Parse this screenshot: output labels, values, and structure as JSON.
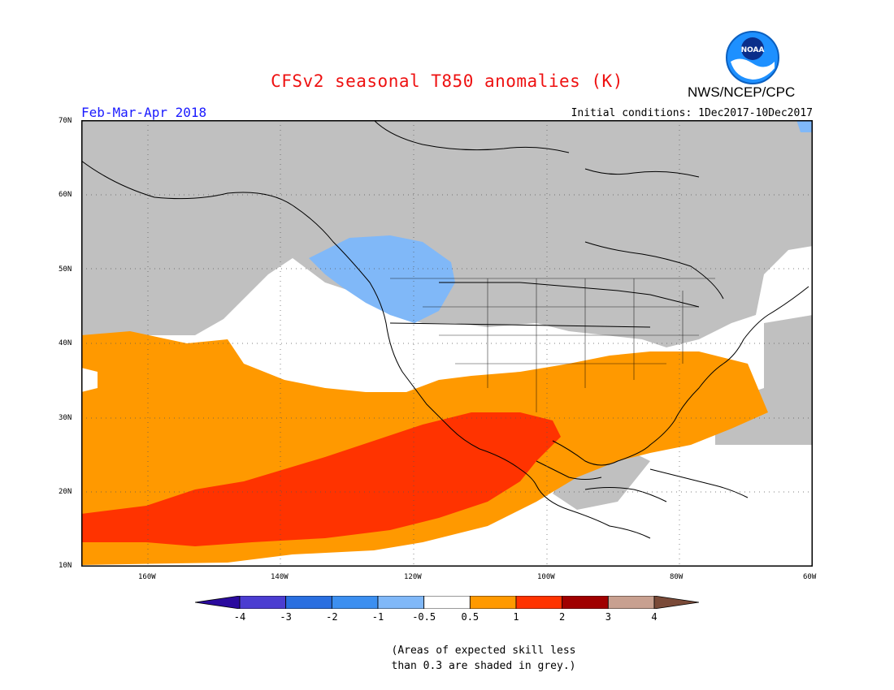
{
  "header": {
    "title": "CFSv2 seasonal T850 anomalies (K)",
    "agency": "NWS/NCEP/CPC",
    "logo_text": "NOAA",
    "period": "Feb-Mar-Apr 2018",
    "initial_conditions": "Initial conditions: 1Dec2017-10Dec2017"
  },
  "map": {
    "lat_ticks": [
      "70N",
      "60N",
      "50N",
      "40N",
      "30N",
      "20N",
      "10N"
    ],
    "lon_ticks": [
      "160W",
      "140W",
      "120W",
      "100W",
      "80W",
      "60W"
    ],
    "extent": {
      "lon_min": -170,
      "lon_max": -60,
      "lat_min": 10,
      "lat_max": 70
    },
    "grid": true
  },
  "colorbar": {
    "labels": [
      "-4",
      "-3",
      "-2",
      "-1",
      "-0.5",
      "0.5",
      "1",
      "2",
      "3",
      "4"
    ],
    "colors": [
      "#2a0a9e",
      "#4b3dd1",
      "#2a6fe0",
      "#3c8ff0",
      "#80b8f8",
      "#ffffff",
      "#ff9900",
      "#ff3300",
      "#a00000",
      "#c8a090",
      "#7a4a38"
    ]
  },
  "footnote": {
    "line1": "(Areas of expected skill less",
    "line2": "than 0.3 are shaded in grey.)"
  },
  "colors": {
    "skill_grey": "#c0c0c0",
    "title_red": "#ee1111",
    "period_blue": "#1a1aff"
  }
}
